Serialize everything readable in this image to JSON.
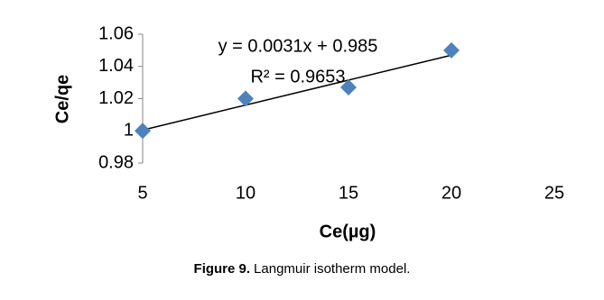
{
  "chart_data": {
    "type": "scatter",
    "x_label": "Ce(µg)",
    "y_label": "Ce/qe",
    "series": [
      {
        "name": "Ce/qe",
        "color": "#4f81bd",
        "x": [
          5,
          10,
          15,
          20
        ],
        "values": [
          1.0,
          1.02,
          1.027,
          1.05
        ]
      }
    ],
    "xlim": [
      5,
      25
    ],
    "xticks": [
      5,
      10,
      15,
      20,
      25
    ],
    "ylim": [
      0.98,
      1.06
    ],
    "yticks": [
      0.98,
      1,
      1.02,
      1.04,
      1.06
    ],
    "grid": false,
    "trendline": {
      "slope": 0.0031,
      "intercept": 0.985,
      "color": "#000000",
      "equation": "y = 0.0031x + 0.985",
      "r2": "R² = 0.9653"
    }
  },
  "caption": {
    "label": "Figure 9.",
    "text": "Langmuir isotherm model."
  }
}
